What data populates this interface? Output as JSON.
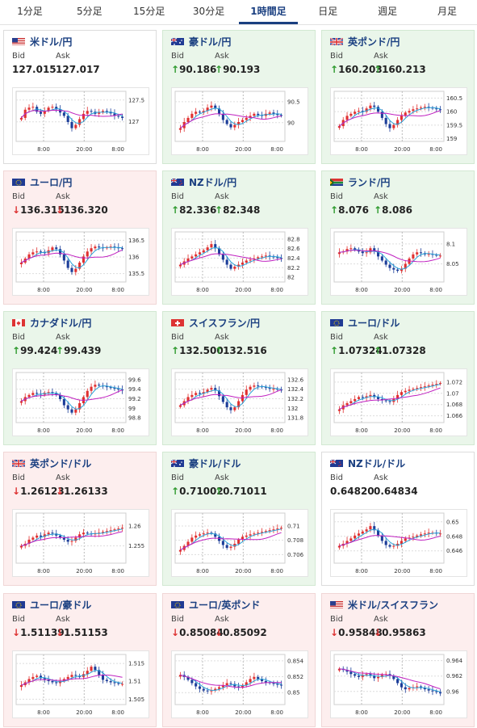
{
  "tabs": [
    {
      "label": "1分足",
      "active": false
    },
    {
      "label": "5分足",
      "active": false
    },
    {
      "label": "15分足",
      "active": false
    },
    {
      "label": "30分足",
      "active": false
    },
    {
      "label": "1時間足",
      "active": true
    },
    {
      "label": "日足",
      "active": false
    },
    {
      "label": "週足",
      "active": false
    },
    {
      "label": "月足",
      "active": false
    }
  ],
  "labels": {
    "bid": "Bid",
    "ask": "Ask"
  },
  "colors": {
    "up_card": "#eaf6ea",
    "down_card": "#fdeeee",
    "title": "#1a3f80",
    "bull": "#e03030",
    "bear": "#1c3d99",
    "ma_fast": "#2aa3d9",
    "ma_slow": "#c020c0",
    "arrow_up": "#2e9a2e",
    "arrow_down": "#d33333"
  },
  "x_ticks": [
    "8:00",
    "20:00",
    "8:00"
  ],
  "cards": [
    {
      "pair": "米ドル/円",
      "flag": "us",
      "status": "neutral",
      "bid": "127.015",
      "ask": "127.017",
      "bid_dir": "",
      "ask_dir": "",
      "yticks": [
        "127.5",
        "127"
      ],
      "ylim": [
        126.55,
        127.7
      ]
    },
    {
      "pair": "豪ドル/円",
      "flag": "au",
      "status": "up",
      "bid": "90.186",
      "ask": "90.193",
      "bid_dir": "up",
      "ask_dir": "up",
      "yticks": [
        "90.5",
        "90"
      ],
      "ylim": [
        89.55,
        90.75
      ]
    },
    {
      "pair": "英ポンド/円",
      "flag": "gb",
      "status": "up",
      "bid": "160.203",
      "ask": "160.213",
      "bid_dir": "up",
      "ask_dir": "up",
      "yticks": [
        "160.5",
        "160",
        "159.5",
        "159"
      ],
      "ylim": [
        158.9,
        160.75
      ]
    },
    {
      "pair": "ユーロ/円",
      "flag": "eu",
      "status": "down",
      "bid": "136.315",
      "ask": "136.320",
      "bid_dir": "down",
      "ask_dir": "down",
      "yticks": [
        "136.5",
        "136",
        "135.5"
      ],
      "ylim": [
        135.25,
        136.75
      ]
    },
    {
      "pair": "NZドル/円",
      "flag": "nz",
      "status": "up",
      "bid": "82.336",
      "ask": "82.348",
      "bid_dir": "up",
      "ask_dir": "up",
      "yticks": [
        "82.8",
        "82.6",
        "82.4",
        "82.2",
        "82"
      ],
      "ylim": [
        81.9,
        82.95
      ]
    },
    {
      "pair": "ランド/円",
      "flag": "za",
      "status": "up",
      "bid": "8.076",
      "ask": "8.086",
      "bid_dir": "up",
      "ask_dir": "up",
      "yticks": [
        "8.1",
        "8.05"
      ],
      "ylim": [
        8.005,
        8.13
      ]
    },
    {
      "pair": "カナダドル/円",
      "flag": "ca",
      "status": "up",
      "bid": "99.424",
      "ask": "99.439",
      "bid_dir": "up",
      "ask_dir": "up",
      "yticks": [
        "99.6",
        "99.4",
        "99.2",
        "99",
        "98.8"
      ],
      "ylim": [
        98.7,
        99.75
      ]
    },
    {
      "pair": "スイスフラン/円",
      "flag": "ch",
      "status": "up",
      "bid": "132.500",
      "ask": "132.516",
      "bid_dir": "up",
      "ask_dir": "up",
      "yticks": [
        "132.6",
        "132.4",
        "132.2",
        "132",
        "131.8"
      ],
      "ylim": [
        131.7,
        132.75
      ]
    },
    {
      "pair": "ユーロ/ドル",
      "flag": "eu",
      "status": "up",
      "bid": "1.07324",
      "ask": "1.07328",
      "bid_dir": "up",
      "ask_dir": "up",
      "yticks": [
        "1.072",
        "1.07",
        "1.068",
        "1.066"
      ],
      "ylim": [
        1.0648,
        1.0737
      ]
    },
    {
      "pair": "英ポンド/ドル",
      "flag": "gb",
      "status": "down",
      "bid": "1.26123",
      "ask": "1.26133",
      "bid_dir": "down",
      "ask_dir": "down",
      "yticks": [
        "1.26",
        "1.255"
      ],
      "ylim": [
        1.2507,
        1.2632
      ]
    },
    {
      "pair": "豪ドル/ドル",
      "flag": "au",
      "status": "up",
      "bid": "0.71002",
      "ask": "0.71011",
      "bid_dir": "up",
      "ask_dir": "up",
      "yticks": [
        "0.71",
        "0.708",
        "0.706"
      ],
      "ylim": [
        0.7048,
        0.7118
      ]
    },
    {
      "pair": "NZドル/ドル",
      "flag": "nz",
      "status": "neutral",
      "bid": "0.64820",
      "ask": "0.64834",
      "bid_dir": "",
      "ask_dir": "",
      "yticks": [
        "0.65",
        "0.648",
        "0.646"
      ],
      "ylim": [
        0.6443,
        0.6512
      ]
    },
    {
      "pair": "ユーロ/豪ドル",
      "flag": "eu",
      "status": "down",
      "bid": "1.51139",
      "ask": "1.51153",
      "bid_dir": "down",
      "ask_dir": "down",
      "yticks": [
        "1.515",
        "1.51",
        "1.505"
      ],
      "ylim": [
        1.5035,
        1.5175
      ]
    },
    {
      "pair": "ユーロ/英ポンド",
      "flag": "eu",
      "status": "down",
      "bid": "0.85084",
      "ask": "0.85092",
      "bid_dir": "down",
      "ask_dir": "down",
      "yticks": [
        "0.854",
        "0.852",
        "0.85"
      ],
      "ylim": [
        0.8485,
        0.8548
      ]
    },
    {
      "pair": "米ドル/スイスフラン",
      "flag": "us",
      "status": "down",
      "bid": "0.95848",
      "ask": "0.95863",
      "bid_dir": "down",
      "ask_dir": "down",
      "yticks": [
        "0.964",
        "0.962",
        "0.96"
      ],
      "ylim": [
        0.9583,
        0.9648
      ]
    }
  ],
  "chart_data": [
    {
      "type": "candlestick",
      "pair": "米ドル/円",
      "shape": [
        0.45,
        0.65,
        0.7,
        0.72,
        0.6,
        0.55,
        0.62,
        0.7,
        0.72,
        0.66,
        0.58,
        0.5,
        0.35,
        0.2,
        0.28,
        0.42,
        0.55,
        0.62,
        0.6,
        0.55,
        0.58,
        0.62,
        0.6,
        0.56,
        0.5,
        0.48,
        0.45
      ]
    },
    {
      "type": "candlestick",
      "pair": "豪ドル/円",
      "shape": [
        0.2,
        0.35,
        0.45,
        0.55,
        0.6,
        0.58,
        0.62,
        0.7,
        0.75,
        0.68,
        0.55,
        0.4,
        0.3,
        0.22,
        0.28,
        0.35,
        0.4,
        0.45,
        0.5,
        0.55,
        0.52,
        0.5,
        0.55,
        0.58,
        0.55,
        0.52,
        0.5
      ]
    },
    {
      "type": "candlestick",
      "pair": "英ポンド/円",
      "shape": [
        0.25,
        0.4,
        0.5,
        0.55,
        0.6,
        0.62,
        0.6,
        0.68,
        0.75,
        0.72,
        0.6,
        0.45,
        0.3,
        0.2,
        0.28,
        0.4,
        0.5,
        0.58,
        0.62,
        0.66,
        0.68,
        0.7,
        0.72,
        0.7,
        0.68,
        0.66,
        0.64
      ]
    },
    {
      "type": "candlestick",
      "pair": "ユーロ/円",
      "shape": [
        0.35,
        0.45,
        0.55,
        0.6,
        0.62,
        0.6,
        0.58,
        0.65,
        0.72,
        0.68,
        0.55,
        0.4,
        0.22,
        0.12,
        0.2,
        0.35,
        0.5,
        0.62,
        0.7,
        0.74,
        0.72,
        0.7,
        0.72,
        0.74,
        0.72,
        0.7,
        0.68
      ]
    },
    {
      "type": "candlestick",
      "pair": "NZドル/円",
      "shape": [
        0.3,
        0.38,
        0.45,
        0.5,
        0.55,
        0.6,
        0.65,
        0.72,
        0.8,
        0.7,
        0.55,
        0.42,
        0.3,
        0.2,
        0.25,
        0.3,
        0.35,
        0.4,
        0.42,
        0.45,
        0.48,
        0.5,
        0.52,
        0.5,
        0.48,
        0.46,
        0.45
      ]
    },
    {
      "type": "candlestick",
      "pair": "ランド/円",
      "shape": [
        0.6,
        0.62,
        0.68,
        0.7,
        0.66,
        0.62,
        0.58,
        0.6,
        0.7,
        0.62,
        0.5,
        0.4,
        0.3,
        0.22,
        0.18,
        0.15,
        0.2,
        0.32,
        0.45,
        0.55,
        0.6,
        0.58,
        0.55,
        0.56,
        0.54,
        0.52,
        0.52
      ]
    },
    {
      "type": "candlestick",
      "pair": "カナダドル/円",
      "shape": [
        0.4,
        0.5,
        0.55,
        0.6,
        0.58,
        0.56,
        0.6,
        0.62,
        0.6,
        0.55,
        0.45,
        0.3,
        0.2,
        0.12,
        0.2,
        0.35,
        0.5,
        0.65,
        0.75,
        0.8,
        0.78,
        0.76,
        0.74,
        0.72,
        0.7,
        0.68,
        0.66
      ]
    },
    {
      "type": "candlestick",
      "pair": "スイスフラン/円",
      "shape": [
        0.3,
        0.4,
        0.5,
        0.55,
        0.6,
        0.58,
        0.62,
        0.68,
        0.72,
        0.66,
        0.52,
        0.38,
        0.25,
        0.18,
        0.25,
        0.4,
        0.55,
        0.68,
        0.75,
        0.78,
        0.76,
        0.74,
        0.72,
        0.7,
        0.7,
        0.68,
        0.67
      ]
    },
    {
      "type": "candlestick",
      "pair": "ユーロ/ドル",
      "shape": [
        0.2,
        0.3,
        0.35,
        0.4,
        0.45,
        0.5,
        0.48,
        0.52,
        0.55,
        0.5,
        0.45,
        0.42,
        0.4,
        0.38,
        0.45,
        0.55,
        0.62,
        0.65,
        0.68,
        0.7,
        0.72,
        0.74,
        0.76,
        0.78,
        0.8,
        0.82,
        0.84
      ]
    },
    {
      "type": "candlestick",
      "pair": "英ポンド/ドル",
      "shape": [
        0.3,
        0.35,
        0.45,
        0.5,
        0.55,
        0.52,
        0.58,
        0.62,
        0.6,
        0.55,
        0.5,
        0.45,
        0.4,
        0.42,
        0.5,
        0.58,
        0.62,
        0.6,
        0.58,
        0.6,
        0.62,
        0.64,
        0.66,
        0.68,
        0.7,
        0.72,
        0.74
      ]
    },
    {
      "type": "candlestick",
      "pair": "豪ドル/ドル",
      "shape": [
        0.2,
        0.3,
        0.4,
        0.5,
        0.55,
        0.58,
        0.6,
        0.62,
        0.6,
        0.52,
        0.42,
        0.32,
        0.25,
        0.28,
        0.35,
        0.45,
        0.52,
        0.55,
        0.58,
        0.6,
        0.62,
        0.64,
        0.66,
        0.68,
        0.7,
        0.72,
        0.74
      ]
    },
    {
      "type": "candlestick",
      "pair": "NZドル/ドル",
      "shape": [
        0.3,
        0.35,
        0.42,
        0.48,
        0.55,
        0.6,
        0.65,
        0.7,
        0.78,
        0.68,
        0.55,
        0.42,
        0.32,
        0.28,
        0.3,
        0.35,
        0.42,
        0.48,
        0.5,
        0.52,
        0.55,
        0.58,
        0.6,
        0.62,
        0.62,
        0.6,
        0.6
      ]
    },
    {
      "type": "candlestick",
      "pair": "ユーロ/豪ドル",
      "shape": [
        0.35,
        0.42,
        0.5,
        0.55,
        0.58,
        0.52,
        0.48,
        0.45,
        0.42,
        0.4,
        0.45,
        0.5,
        0.55,
        0.6,
        0.58,
        0.55,
        0.62,
        0.7,
        0.8,
        0.72,
        0.6,
        0.48,
        0.45,
        0.42,
        0.4,
        0.38,
        0.38
      ]
    },
    {
      "type": "candlestick",
      "pair": "ユーロ/英ポンド",
      "shape": [
        0.6,
        0.55,
        0.48,
        0.4,
        0.32,
        0.26,
        0.22,
        0.2,
        0.22,
        0.26,
        0.3,
        0.35,
        0.4,
        0.38,
        0.32,
        0.3,
        0.35,
        0.42,
        0.5,
        0.55,
        0.5,
        0.45,
        0.42,
        0.4,
        0.38,
        0.36,
        0.35
      ]
    },
    {
      "type": "candlestick",
      "pair": "米ドル/スイスフラン",
      "shape": [
        0.75,
        0.72,
        0.68,
        0.62,
        0.58,
        0.55,
        0.6,
        0.62,
        0.58,
        0.52,
        0.55,
        0.6,
        0.62,
        0.58,
        0.5,
        0.4,
        0.3,
        0.25,
        0.28,
        0.3,
        0.32,
        0.28,
        0.25,
        0.22,
        0.2,
        0.18,
        0.15
      ]
    }
  ]
}
